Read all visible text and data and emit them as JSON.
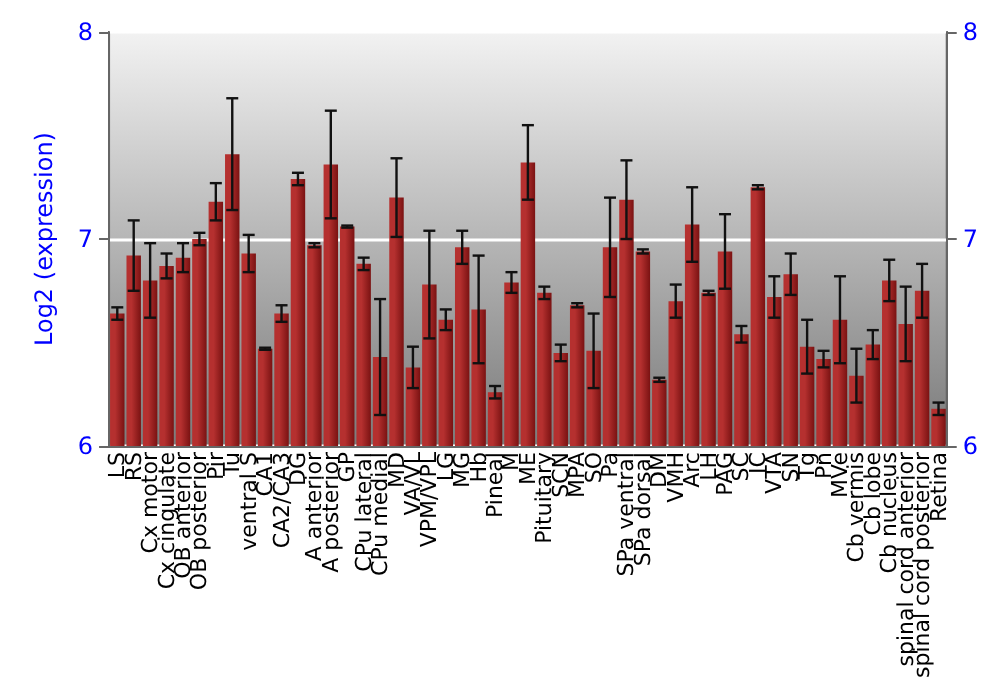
{
  "chart_data": {
    "type": "bar",
    "ylabel": "Log2 (expression)",
    "categories": [
      "LS",
      "RS",
      "Cx motor",
      "Cx cingulate",
      "OB anterior",
      "OB posterior",
      "Pir",
      "Tu",
      "ventral S",
      "CA1",
      "CA2/CA3",
      "DG",
      "A anterior",
      "A posterior",
      "GP",
      "CPu lateral",
      "CPu medial",
      "MD",
      "VA/VL",
      "VPM/VPL",
      "LG",
      "MG",
      "Hb",
      "Pineal",
      "M",
      "ME",
      "Pituitary",
      "SCN",
      "MPA",
      "SO",
      "Pa",
      "SPa ventral",
      "SPa dorsal",
      "DM",
      "VMH",
      "Arc",
      "LH",
      "PAG",
      "SC",
      "IC",
      "VTA",
      "SN",
      "Tg",
      "Pn",
      "MVe",
      "Cb vermis",
      "Cb lobe",
      "Cb nucleus",
      "spinal cord anterior",
      "spinal cord posterior",
      "Retina"
    ],
    "series": [
      {
        "color": "#b5302f",
        "values": [
          6.64,
          6.92,
          6.8,
          6.87,
          6.91,
          7.0,
          7.18,
          7.41,
          6.93,
          6.47,
          6.64,
          7.29,
          6.97,
          7.36,
          7.06,
          6.88,
          6.43,
          7.2,
          6.38,
          6.78,
          6.61,
          6.96,
          6.66,
          6.26,
          6.79,
          7.37,
          6.74,
          6.45,
          6.68,
          6.46,
          6.96,
          7.19,
          6.94,
          6.32,
          6.7,
          7.07,
          6.74,
          6.94,
          6.54,
          7.25,
          6.72,
          6.83,
          6.48,
          6.42,
          6.61,
          6.34,
          6.49,
          6.8,
          6.59,
          6.75,
          6.18
        ],
        "errors": [
          0.03,
          0.17,
          0.18,
          0.06,
          0.07,
          0.03,
          0.09,
          0.27,
          0.09,
          0.005,
          0.04,
          0.03,
          0.01,
          0.26,
          0.005,
          0.03,
          0.28,
          0.19,
          0.1,
          0.26,
          0.05,
          0.08,
          0.26,
          0.03,
          0.05,
          0.18,
          0.03,
          0.04,
          0.01,
          0.18,
          0.24,
          0.19,
          0.01,
          0.01,
          0.08,
          0.18,
          0.01,
          0.18,
          0.04,
          0.01,
          0.1,
          0.1,
          0.13,
          0.04,
          0.21,
          0.13,
          0.07,
          0.1,
          0.18,
          0.13,
          0.03
        ]
      }
    ],
    "ylim": [
      6,
      8
    ],
    "yticks": [
      6,
      7,
      8
    ],
    "y2lim": [
      6,
      8
    ],
    "y2ticks": [
      6,
      7,
      8
    ],
    "grid": "y"
  }
}
